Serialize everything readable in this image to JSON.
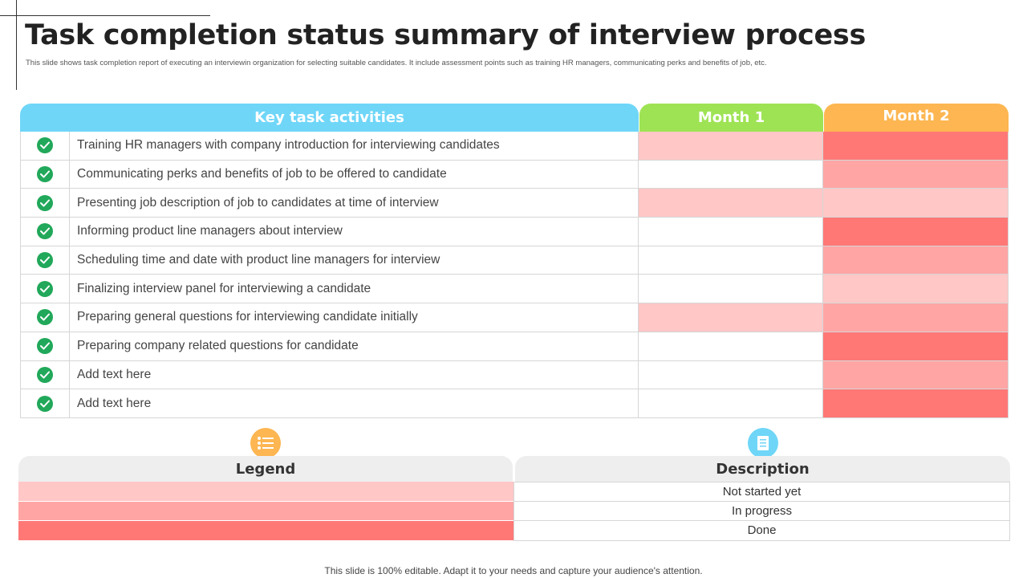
{
  "header": {
    "title": "Task completion status summary of interview process",
    "subtitle": "This slide shows task completion report of executing an interviewin organization for selecting suitable candidates. It include assessment points such as training HR managers, communicating perks and benefits of job, etc."
  },
  "table": {
    "headers": {
      "key": "Key task activities",
      "month1": "Month 1",
      "month2": "Month 2"
    },
    "rows": [
      {
        "task": "Training HR managers with company introduction for interviewing candidates",
        "month1": "not_started",
        "month2": "done"
      },
      {
        "task": "Communicating perks and benefits of job to be offered to candidate",
        "month1": "none",
        "month2": "in_progress"
      },
      {
        "task": "Presenting job description of job to candidates at time of interview",
        "month1": "not_started",
        "month2": "not_started"
      },
      {
        "task": "Informing product line managers about interview",
        "month1": "none",
        "month2": "done"
      },
      {
        "task": "Scheduling time and date with product line managers for interview",
        "month1": "none",
        "month2": "in_progress"
      },
      {
        "task": "Finalizing interview panel for interviewing a candidate",
        "month1": "none",
        "month2": "not_started"
      },
      {
        "task": "Preparing general questions for interviewing candidate initially",
        "month1": "not_started",
        "month2": "in_progress"
      },
      {
        "task": "Preparing company related questions for candidate",
        "month1": "none",
        "month2": "done"
      },
      {
        "task": "Add text here",
        "month1": "none",
        "month2": "in_progress"
      },
      {
        "task": "Add text here",
        "month1": "none",
        "month2": "done"
      }
    ]
  },
  "legend": {
    "legend_header": "Legend",
    "description_header": "Description",
    "items": [
      {
        "status": "not_started",
        "label": "Not started yet"
      },
      {
        "status": "in_progress",
        "label": "In progress"
      },
      {
        "status": "done",
        "label": "Done"
      }
    ]
  },
  "colors": {
    "not_started": "#ffc7c6",
    "in_progress": "#ffa6a5",
    "done": "#ff7876",
    "none": "#ffffff",
    "check": "#21a85a",
    "header_key": "#6fd6f8",
    "header_month1": "#9ee354",
    "header_month2": "#fdb651"
  },
  "icons": {
    "row_status": "check-circle-icon",
    "legend": "list-icon",
    "description": "document-icon"
  },
  "footer": "This slide is 100% editable. Adapt it to your needs and capture your audience's attention."
}
